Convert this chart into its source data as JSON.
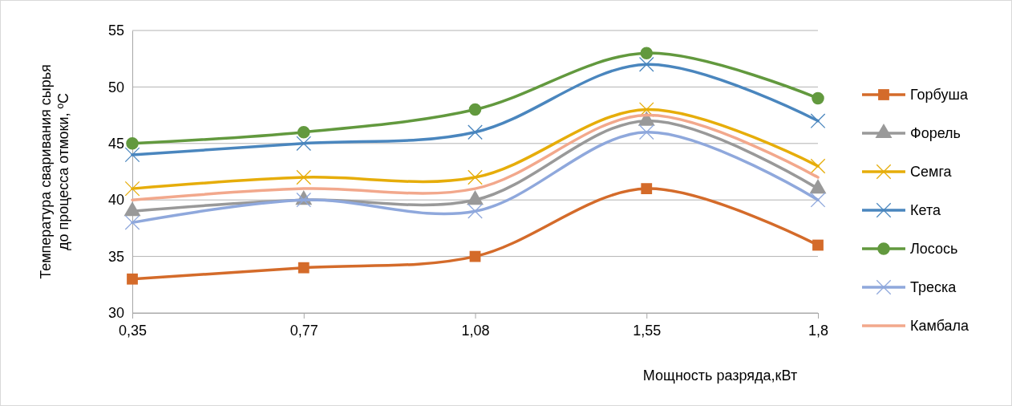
{
  "chart_data": {
    "type": "line",
    "xlabel": "Мощность разряда,кВт",
    "ylabel": "Температура сваривания сырья\nдо процесса отмоки, ºС",
    "categories": [
      "0,35",
      "0,77",
      "1,08",
      "1,55",
      "1,8"
    ],
    "ylim": [
      30,
      55
    ],
    "yticks": [
      30,
      35,
      40,
      45,
      50,
      55
    ],
    "grid": "y",
    "legend": "right",
    "line_style": "solid",
    "series": [
      {
        "name": "Горбуша",
        "color": "#d46b2a",
        "marker": "square",
        "values": [
          33,
          34,
          35,
          41,
          36
        ]
      },
      {
        "name": "Форель",
        "color": "#999999",
        "marker": "triangle",
        "values": [
          39,
          40,
          40,
          47,
          41
        ]
      },
      {
        "name": "Семга",
        "color": "#e6ad0a",
        "marker": "cross",
        "values": [
          41,
          42,
          42,
          48,
          43
        ]
      },
      {
        "name": "Кета",
        "color": "#4a86be",
        "marker": "cross",
        "values": [
          44,
          45,
          46,
          52,
          47
        ]
      },
      {
        "name": "Лосось",
        "color": "#62993e",
        "marker": "circle",
        "values": [
          45,
          46,
          48,
          53,
          49
        ]
      },
      {
        "name": "Треска",
        "color": "#8fa8dc",
        "marker": "cross",
        "values": [
          38,
          40,
          39,
          46,
          40
        ]
      },
      {
        "name": "Камбала",
        "color": "#f2a88c",
        "marker": "none",
        "values": [
          40,
          41,
          41,
          47.5,
          42
        ]
      }
    ]
  }
}
